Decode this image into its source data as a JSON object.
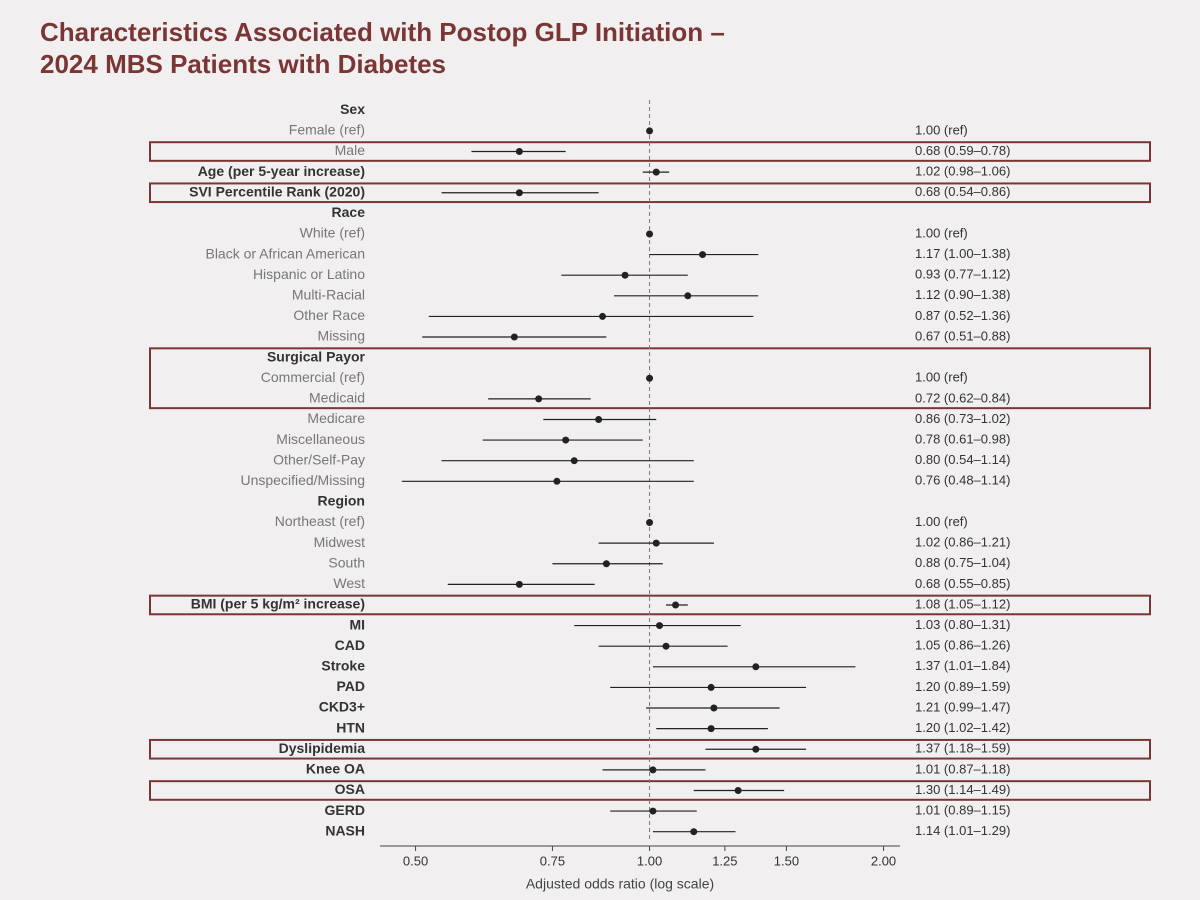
{
  "chart_data": {
    "type": "forest",
    "title": [
      "Characteristics Associated with Postop GLP Initiation –",
      "2024 MBS Patients with Diabetes"
    ],
    "x_label": "Adjusted odds ratio (log scale)",
    "log_scale": true,
    "xlim": [
      0.45,
      2.1
    ],
    "xticks": [
      {
        "value": 0.5,
        "label": "0.50"
      },
      0.75,
      {
        "value": 1,
        "label": "1.00"
      },
      1.25,
      {
        "value": 1.5,
        "label": "1.50"
      },
      {
        "value": 2,
        "label": "2.00"
      }
    ],
    "reference_line": 1,
    "color": "#222222",
    "highlight_color": "#7a3535",
    "rows": [
      {
        "label": "Sex",
        "estimate": null,
        "lower": null,
        "upper": null,
        "value_label": null,
        "bold": true,
        "highlight": false
      },
      {
        "label": "Female (ref)",
        "estimate": 1,
        "lower": null,
        "upper": null,
        "value_label": "1.00 (ref)",
        "bold": false,
        "highlight": false
      },
      {
        "label": "Male",
        "estimate": 0.68,
        "lower": 0.59,
        "upper": 0.78,
        "value_label": "0.68 (0.59–0.78)",
        "bold": false,
        "highlight": true
      },
      {
        "label": "Age (per 5-year increase)",
        "estimate": 1.02,
        "lower": 0.98,
        "upper": 1.06,
        "value_label": "1.02 (0.98–1.06)",
        "bold": true,
        "highlight": false
      },
      {
        "label": "SVI Percentile Rank (2020)",
        "estimate": 0.68,
        "lower": 0.54,
        "upper": 0.86,
        "value_label": "0.68 (0.54–0.86)",
        "bold": true,
        "highlight": true
      },
      {
        "label": "Race",
        "estimate": null,
        "lower": null,
        "upper": null,
        "value_label": null,
        "bold": true,
        "highlight": false
      },
      {
        "label": "White (ref)",
        "estimate": 1,
        "lower": null,
        "upper": null,
        "value_label": "1.00 (ref)",
        "bold": false,
        "highlight": false
      },
      {
        "label": "Black or African American",
        "estimate": 1.17,
        "lower": 1.0,
        "upper": 1.38,
        "value_label": "1.17 (1.00–1.38)",
        "bold": false,
        "highlight": false
      },
      {
        "label": "Hispanic or Latino",
        "estimate": 0.93,
        "lower": 0.77,
        "upper": 1.12,
        "value_label": "0.93 (0.77–1.12)",
        "bold": false,
        "highlight": false
      },
      {
        "label": "Multi-Racial",
        "estimate": 1.12,
        "lower": 0.9,
        "upper": 1.38,
        "value_label": "1.12 (0.90–1.38)",
        "bold": false,
        "highlight": false
      },
      {
        "label": "Other Race",
        "estimate": 0.87,
        "lower": 0.52,
        "upper": 1.36,
        "value_label": "0.87 (0.52–1.36)",
        "bold": false,
        "highlight": false
      },
      {
        "label": "Missing",
        "estimate": 0.67,
        "lower": 0.51,
        "upper": 0.88,
        "value_label": "0.67 (0.51–0.88)",
        "bold": false,
        "highlight": false
      },
      {
        "label": "Surgical Payor",
        "estimate": null,
        "lower": null,
        "upper": null,
        "value_label": null,
        "bold": true,
        "highlight": true
      },
      {
        "label": "Commercial (ref)",
        "estimate": 1,
        "lower": null,
        "upper": null,
        "value_label": "1.00 (ref)",
        "bold": false,
        "highlight": true
      },
      {
        "label": "Medicaid",
        "estimate": 0.72,
        "lower": 0.62,
        "upper": 0.84,
        "value_label": "0.72 (0.62–0.84)",
        "bold": false,
        "highlight": true
      },
      {
        "label": "Medicare",
        "estimate": 0.86,
        "lower": 0.73,
        "upper": 1.02,
        "value_label": "0.86 (0.73–1.02)",
        "bold": false,
        "highlight": false
      },
      {
        "label": "Miscellaneous",
        "estimate": 0.78,
        "lower": 0.61,
        "upper": 0.98,
        "value_label": "0.78 (0.61–0.98)",
        "bold": false,
        "highlight": false
      },
      {
        "label": "Other/Self-Pay",
        "estimate": 0.8,
        "lower": 0.54,
        "upper": 1.14,
        "value_label": "0.80 (0.54–1.14)",
        "bold": false,
        "highlight": false
      },
      {
        "label": "Unspecified/Missing",
        "estimate": 0.76,
        "lower": 0.48,
        "upper": 1.14,
        "value_label": "0.76 (0.48–1.14)",
        "bold": false,
        "highlight": false
      },
      {
        "label": "Region",
        "estimate": null,
        "lower": null,
        "upper": null,
        "value_label": null,
        "bold": true,
        "highlight": false
      },
      {
        "label": "Northeast (ref)",
        "estimate": 1,
        "lower": null,
        "upper": null,
        "value_label": "1.00 (ref)",
        "bold": false,
        "highlight": false
      },
      {
        "label": "Midwest",
        "estimate": 1.02,
        "lower": 0.86,
        "upper": 1.21,
        "value_label": "1.02 (0.86–1.21)",
        "bold": false,
        "highlight": false
      },
      {
        "label": "South",
        "estimate": 0.88,
        "lower": 0.75,
        "upper": 1.04,
        "value_label": "0.88 (0.75–1.04)",
        "bold": false,
        "highlight": false
      },
      {
        "label": "West",
        "estimate": 0.68,
        "lower": 0.55,
        "upper": 0.85,
        "value_label": "0.68 (0.55–0.85)",
        "bold": false,
        "highlight": false
      },
      {
        "label": "BMI (per 5 kg/m² increase)",
        "estimate": 1.08,
        "lower": 1.05,
        "upper": 1.12,
        "value_label": "1.08 (1.05–1.12)",
        "bold": true,
        "highlight": true
      },
      {
        "label": "MI",
        "estimate": 1.03,
        "lower": 0.8,
        "upper": 1.31,
        "value_label": "1.03 (0.80–1.31)",
        "bold": true,
        "highlight": false
      },
      {
        "label": "CAD",
        "estimate": 1.05,
        "lower": 0.86,
        "upper": 1.26,
        "value_label": "1.05 (0.86–1.26)",
        "bold": true,
        "highlight": false
      },
      {
        "label": "Stroke",
        "estimate": 1.37,
        "lower": 1.01,
        "upper": 1.84,
        "value_label": "1.37 (1.01–1.84)",
        "bold": true,
        "highlight": false
      },
      {
        "label": "PAD",
        "estimate": 1.2,
        "lower": 0.89,
        "upper": 1.59,
        "value_label": "1.20 (0.89–1.59)",
        "bold": true,
        "highlight": false
      },
      {
        "label": "CKD3+",
        "estimate": 1.21,
        "lower": 0.99,
        "upper": 1.47,
        "value_label": "1.21 (0.99–1.47)",
        "bold": true,
        "highlight": false
      },
      {
        "label": "HTN",
        "estimate": 1.2,
        "lower": 1.02,
        "upper": 1.42,
        "value_label": "1.20 (1.02–1.42)",
        "bold": true,
        "highlight": false
      },
      {
        "label": "Dyslipidemia",
        "estimate": 1.37,
        "lower": 1.18,
        "upper": 1.59,
        "value_label": "1.37 (1.18–1.59)",
        "bold": true,
        "highlight": true
      },
      {
        "label": "Knee OA",
        "estimate": 1.01,
        "lower": 0.87,
        "upper": 1.18,
        "value_label": "1.01 (0.87–1.18)",
        "bold": true,
        "highlight": false
      },
      {
        "label": "OSA",
        "estimate": 1.3,
        "lower": 1.14,
        "upper": 1.49,
        "value_label": "1.30 (1.14–1.49)",
        "bold": true,
        "highlight": true
      },
      {
        "label": "GERD",
        "estimate": 1.01,
        "lower": 0.89,
        "upper": 1.15,
        "value_label": "1.01 (0.89–1.15)",
        "bold": true,
        "highlight": false
      },
      {
        "label": "NASH",
        "estimate": 1.14,
        "lower": 1.01,
        "upper": 1.29,
        "value_label": "1.14 (1.01–1.29)",
        "bold": true,
        "highlight": false
      }
    ]
  }
}
